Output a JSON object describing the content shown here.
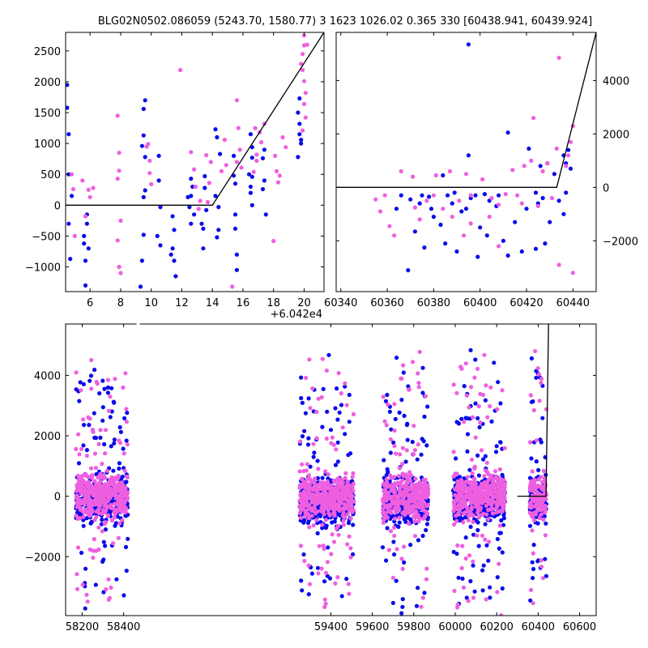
{
  "title": "BLG02N0502.086059 (5243.70, 1580.77)   3 1623 1026.02 0.365 330 [60438.941, 60439.924]",
  "colors": {
    "series_a": "#0b0bea",
    "series_b": "#ee5fe0",
    "model": "#000000"
  },
  "chart_data": [
    {
      "id": "zoom",
      "type": "scatter",
      "offset_label": "+6.042e4",
      "xlim": [
        4.4,
        21.3
      ],
      "ylim": [
        -1400,
        2800
      ],
      "xticks": [
        6,
        8,
        10,
        12,
        14,
        16,
        18,
        20
      ],
      "yticks": [
        -1000,
        -500,
        0,
        500,
        1000,
        1500,
        2000,
        2500
      ],
      "yaxis_side": "left",
      "series": [
        {
          "color_key": "series_a",
          "points": [
            [
              4.5,
              1950
            ],
            [
              4.5,
              1580
            ],
            [
              4.6,
              1150
            ],
            [
              4.6,
              500
            ],
            [
              4.6,
              -300
            ],
            [
              4.7,
              -870
            ],
            [
              4.8,
              150
            ],
            [
              5.6,
              -500
            ],
            [
              5.6,
              -620
            ],
            [
              5.7,
              -1300
            ],
            [
              5.7,
              -900
            ],
            [
              5.8,
              -300
            ],
            [
              5.9,
              -700
            ],
            [
              5.8,
              -150
            ],
            [
              9.4,
              960
            ],
            [
              9.5,
              1560
            ],
            [
              9.5,
              1130
            ],
            [
              9.6,
              1700
            ],
            [
              9.6,
              780
            ],
            [
              9.5,
              -480
            ],
            [
              9.4,
              -900
            ],
            [
              9.3,
              -1320
            ],
            [
              9.6,
              240
            ],
            [
              9.5,
              130
            ],
            [
              10.5,
              400
            ],
            [
              10.6,
              -30
            ],
            [
              10.4,
              -500
            ],
            [
              10.6,
              -650
            ],
            [
              10.5,
              800
            ],
            [
              11.4,
              -180
            ],
            [
              11.5,
              -400
            ],
            [
              11.4,
              -700
            ],
            [
              11.5,
              -900
            ],
            [
              11.6,
              -1150
            ],
            [
              11.3,
              -800
            ],
            [
              12.5,
              -30
            ],
            [
              12.6,
              430
            ],
            [
              12.6,
              150
            ],
            [
              12.7,
              300
            ],
            [
              12.8,
              -150
            ],
            [
              12.6,
              -300
            ],
            [
              12.4,
              130
            ],
            [
              13.3,
              -300
            ],
            [
              13.4,
              -380
            ],
            [
              13.5,
              280
            ],
            [
              13.5,
              470
            ],
            [
              13.6,
              -80
            ],
            [
              13.4,
              -700
            ],
            [
              14.2,
              1230
            ],
            [
              14.3,
              1100
            ],
            [
              14.4,
              -30
            ],
            [
              14.5,
              830
            ],
            [
              14.4,
              -400
            ],
            [
              14.3,
              -520
            ],
            [
              14.2,
              150
            ],
            [
              15.4,
              800
            ],
            [
              15.5,
              350
            ],
            [
              15.5,
              -380
            ],
            [
              15.6,
              -800
            ],
            [
              15.5,
              -150
            ],
            [
              15.4,
              480
            ],
            [
              15.6,
              -1050
            ],
            [
              16.5,
              1150
            ],
            [
              16.6,
              940
            ],
            [
              16.6,
              770
            ],
            [
              16.4,
              500
            ],
            [
              16.6,
              460
            ],
            [
              16.5,
              300
            ],
            [
              16.5,
              200
            ],
            [
              16.6,
              0
            ],
            [
              17.3,
              760
            ],
            [
              17.4,
              900
            ],
            [
              17.4,
              400
            ],
            [
              17.3,
              260
            ],
            [
              17.5,
              -150
            ],
            [
              19.6,
              1500
            ],
            [
              19.7,
              1320
            ],
            [
              19.7,
              1150
            ],
            [
              19.8,
              1060
            ],
            [
              19.6,
              780
            ],
            [
              19.7,
              1730
            ],
            [
              19.8,
              1000
            ]
          ]
        },
        {
          "color_key": "series_b",
          "points": [
            [
              4.8,
              500
            ],
            [
              4.9,
              260
            ],
            [
              5.0,
              -500
            ],
            [
              5.5,
              400
            ],
            [
              5.7,
              -180
            ],
            [
              6.0,
              130
            ],
            [
              6.2,
              280
            ],
            [
              5.9,
              250
            ],
            [
              7.8,
              1450
            ],
            [
              7.9,
              560
            ],
            [
              7.8,
              430
            ],
            [
              8.0,
              -250
            ],
            [
              7.8,
              -570
            ],
            [
              7.9,
              -1000
            ],
            [
              8.0,
              -1100
            ],
            [
              7.9,
              -1000
            ],
            [
              7.9,
              850
            ],
            [
              9.8,
              990
            ],
            [
              9.9,
              720
            ],
            [
              9.9,
              520
            ],
            [
              10.0,
              340
            ],
            [
              9.7,
              950
            ],
            [
              11.9,
              2190
            ],
            [
              12.6,
              860
            ],
            [
              12.8,
              580
            ],
            [
              12.9,
              300
            ],
            [
              13.1,
              -60
            ],
            [
              13.2,
              70
            ],
            [
              13.7,
              50
            ],
            [
              13.8,
              360
            ],
            [
              13.9,
              700
            ],
            [
              13.6,
              810
            ],
            [
              14.6,
              550
            ],
            [
              14.8,
              1060
            ],
            [
              14.9,
              650
            ],
            [
              15.3,
              -1320
            ],
            [
              15.6,
              1700
            ],
            [
              15.7,
              1250
            ],
            [
              15.8,
              900
            ],
            [
              15.6,
              700
            ],
            [
              15.9,
              610
            ],
            [
              16.8,
              1250
            ],
            [
              16.9,
              820
            ],
            [
              16.7,
              540
            ],
            [
              16.9,
              720
            ],
            [
              17.1,
              1180
            ],
            [
              17.2,
              1020
            ],
            [
              17.4,
              1320
            ],
            [
              18.1,
              800
            ],
            [
              18.2,
              550
            ],
            [
              18.3,
              370
            ],
            [
              18.4,
              480
            ],
            [
              18.0,
              -580
            ],
            [
              18.6,
              1100
            ],
            [
              18.8,
              940
            ],
            [
              19.8,
              2290
            ],
            [
              19.9,
              2450
            ],
            [
              20.0,
              2590
            ],
            [
              19.9,
              2190
            ],
            [
              20.0,
              2010
            ],
            [
              20.1,
              1820
            ],
            [
              20.0,
              1640
            ],
            [
              20.1,
              1420
            ],
            [
              19.9,
              1210
            ],
            [
              20.2,
              2600
            ],
            [
              20.0,
              2750
            ]
          ]
        }
      ],
      "model": [
        [
          4.4,
          0
        ],
        [
          14.0,
          0
        ],
        [
          21.3,
          2800
        ]
      ]
    },
    {
      "id": "season",
      "type": "scatter",
      "xlim": [
        60338,
        60450
      ],
      "ylim": [
        -3900,
        5800
      ],
      "xticks": [
        60340,
        60360,
        60380,
        60400,
        60420,
        60440
      ],
      "yticks": [
        -2000,
        0,
        2000,
        4000
      ],
      "yaxis_side": "right",
      "series": [
        {
          "color_key": "series_a",
          "points": [
            [
              60395,
              5350
            ],
            [
              60412,
              2050
            ],
            [
              60395,
              1200
            ],
            [
              60384,
              450
            ],
            [
              60396,
              -400
            ],
            [
              60398,
              -300
            ],
            [
              60385,
              -2100
            ],
            [
              60390,
              -2400
            ],
            [
              60399,
              -2600
            ],
            [
              60376,
              -2250
            ],
            [
              60369,
              -3100
            ],
            [
              60372,
              -1650
            ],
            [
              60374,
              -600
            ],
            [
              60379,
              -800
            ],
            [
              60380,
              -1100
            ],
            [
              60383,
              -1400
            ],
            [
              60389,
              -200
            ],
            [
              60392,
              -900
            ],
            [
              60403,
              -1800
            ],
            [
              60407,
              -700
            ],
            [
              60410,
              -2000
            ],
            [
              60412,
              -2550
            ],
            [
              60415,
              -1300
            ],
            [
              60418,
              -2400
            ],
            [
              60420,
              -800
            ],
            [
              60421,
              1450
            ],
            [
              60424,
              -200
            ],
            [
              60426,
              800
            ],
            [
              60429,
              900
            ],
            [
              60432,
              500
            ],
            [
              60434,
              -500
            ],
            [
              60436,
              1200
            ],
            [
              60437,
              900
            ],
            [
              60438,
              1400
            ],
            [
              60439,
              700
            ],
            [
              60437,
              -200
            ],
            [
              60436,
              -1000
            ],
            [
              60430,
              -1300
            ],
            [
              60428,
              -2100
            ],
            [
              60424,
              -2300
            ],
            [
              60427,
              -400
            ],
            [
              60425,
              -600
            ],
            [
              60408,
              -300
            ],
            [
              60404,
              -500
            ],
            [
              60402,
              -250
            ],
            [
              60400,
              -1500
            ],
            [
              60386,
              -300
            ],
            [
              60388,
              -600
            ],
            [
              60370,
              -450
            ],
            [
              60366,
              -300
            ],
            [
              60364,
              -800
            ],
            [
              60375,
              -300
            ],
            [
              60378,
              -350
            ],
            [
              60394,
              -800
            ]
          ]
        },
        {
          "color_key": "series_b",
          "points": [
            [
              60434,
              4850
            ],
            [
              60423,
              2600
            ],
            [
              60440,
              2300
            ],
            [
              60439,
              1700
            ],
            [
              60438,
              1200
            ],
            [
              60437,
              800
            ],
            [
              60433,
              1450
            ],
            [
              60429,
              900
            ],
            [
              60427,
              600
            ],
            [
              60422,
              1000
            ],
            [
              60419,
              800
            ],
            [
              60414,
              650
            ],
            [
              60401,
              300
            ],
            [
              60394,
              500
            ],
            [
              60387,
              600
            ],
            [
              60381,
              450
            ],
            [
              60371,
              400
            ],
            [
              60366,
              600
            ],
            [
              60359,
              -300
            ],
            [
              60355,
              -450
            ],
            [
              60357,
              -900
            ],
            [
              60361,
              -1450
            ],
            [
              60363,
              -1800
            ],
            [
              60372,
              -750
            ],
            [
              60374,
              -1200
            ],
            [
              60377,
              -500
            ],
            [
              60380,
              -300
            ],
            [
              60384,
              -800
            ],
            [
              60391,
              -500
            ],
            [
              60396,
              -300
            ],
            [
              60405,
              -400
            ],
            [
              60408,
              -650
            ],
            [
              60411,
              -250
            ],
            [
              60416,
              -300
            ],
            [
              60418,
              -600
            ],
            [
              60425,
              -700
            ],
            [
              60431,
              -400
            ],
            [
              60434,
              -2900
            ],
            [
              60440,
              -3200
            ],
            [
              60388,
              -1100
            ],
            [
              60393,
              -1800
            ],
            [
              60404,
              -1100
            ],
            [
              60408,
              -2200
            ],
            [
              60396,
              -1350
            ]
          ]
        }
      ],
      "model": [
        [
          60338,
          0
        ],
        [
          60433,
          0
        ],
        [
          60450,
          5800
        ]
      ]
    },
    {
      "id": "full",
      "type": "scatter",
      "xlim": [
        58120,
        60680
      ],
      "ylim": [
        -3950,
        5700
      ],
      "xticks": [
        58200,
        58400,
        59400,
        59600,
        59800,
        60000,
        60200,
        60400,
        60600
      ],
      "yticks": [
        -2000,
        0,
        2000,
        4000
      ],
      "yaxis_side": "left",
      "seasons": [
        {
          "start": 58170,
          "end": 58420,
          "seed": 11
        },
        {
          "start": 59250,
          "end": 59510,
          "seed": 23
        },
        {
          "start": 59650,
          "end": 59870,
          "seed": 37
        },
        {
          "start": 59990,
          "end": 60240,
          "seed": 51
        },
        {
          "start": 60360,
          "end": 60440,
          "seed": 67
        }
      ],
      "model": [
        [
          60300,
          0
        ],
        [
          60438,
          0
        ],
        [
          60450,
          5700
        ]
      ]
    }
  ]
}
